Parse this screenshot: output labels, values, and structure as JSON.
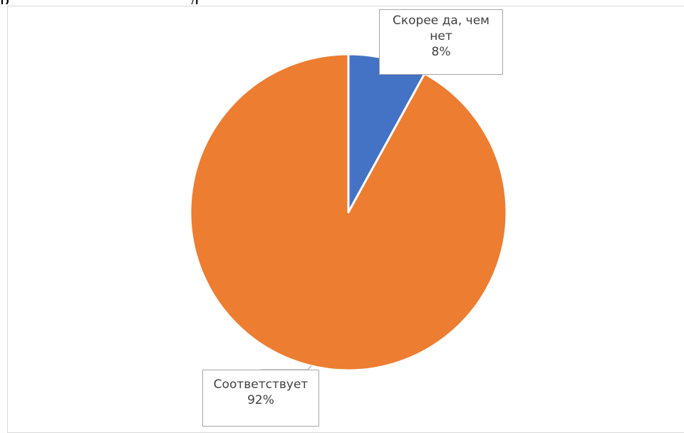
{
  "page": {
    "top_text": "р                                       д"
  },
  "chart_data": {
    "type": "pie",
    "title": "",
    "categories": [
      "Скорее да, чем нет",
      "Соответствует"
    ],
    "values": [
      8,
      92
    ],
    "colors": [
      "#4472c4",
      "#ed7d31"
    ],
    "labels": [
      {
        "line1": "Скорее да, чем",
        "line2": "нет",
        "percent": "8%"
      },
      {
        "line1": "Соответствует",
        "line2": "",
        "percent": "92%"
      }
    ],
    "start_angle_deg": 0,
    "direction": "clockwise",
    "legend": "none"
  }
}
